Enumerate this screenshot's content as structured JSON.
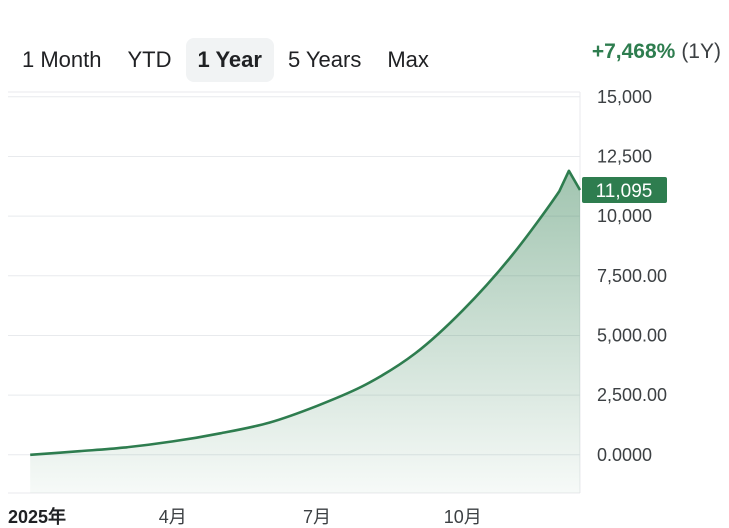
{
  "tabs": [
    {
      "label": "1 Month",
      "active": false
    },
    {
      "label": "YTD",
      "active": false
    },
    {
      "label": "1 Year",
      "active": true
    },
    {
      "label": "5 Years",
      "active": false
    },
    {
      "label": "Max",
      "active": false
    }
  ],
  "performance": {
    "change": "+7,468%",
    "period": "(1Y)"
  },
  "colors": {
    "accent": "#2e7d4f",
    "line": "#2e7d4f",
    "badge": "#2e7d4f",
    "grid": "#e8eaed"
  },
  "chart_data": {
    "type": "area",
    "x": [
      "2025-01-01",
      "2025-02-01",
      "2025-03-01",
      "2025-04-01",
      "2025-05-01",
      "2025-06-01",
      "2025-07-01",
      "2025-08-01",
      "2025-09-01",
      "2025-10-01",
      "2025-11-01",
      "2025-12-01",
      "2025-12-07",
      "2025-12-14"
    ],
    "y": [
      0,
      150,
      300,
      560,
      900,
      1350,
      2050,
      2950,
      4250,
      6050,
      8350,
      11050,
      11900,
      11095
    ],
    "xticks": [
      {
        "label": "2025年",
        "value": "2025-01-01"
      },
      {
        "label": "4月",
        "value": "2025-04-01"
      },
      {
        "label": "7月",
        "value": "2025-07-01"
      },
      {
        "label": "10月",
        "value": "2025-10-01"
      }
    ],
    "yticks": [
      {
        "label": "0.0000",
        "value": 0
      },
      {
        "label": "2,500.00",
        "value": 2500
      },
      {
        "label": "5,000.00",
        "value": 5000
      },
      {
        "label": "7,500.00",
        "value": 7500
      },
      {
        "label": "10,000",
        "value": 10000
      },
      {
        "label": "12,500",
        "value": 12500
      },
      {
        "label": "15,000",
        "value": 15000
      }
    ],
    "ylim": [
      -1600,
      15200
    ],
    "xlim": [
      "2024-12-18",
      "2025-12-14"
    ],
    "last_value": 11095,
    "last_value_label": "11,095",
    "grid": true
  }
}
